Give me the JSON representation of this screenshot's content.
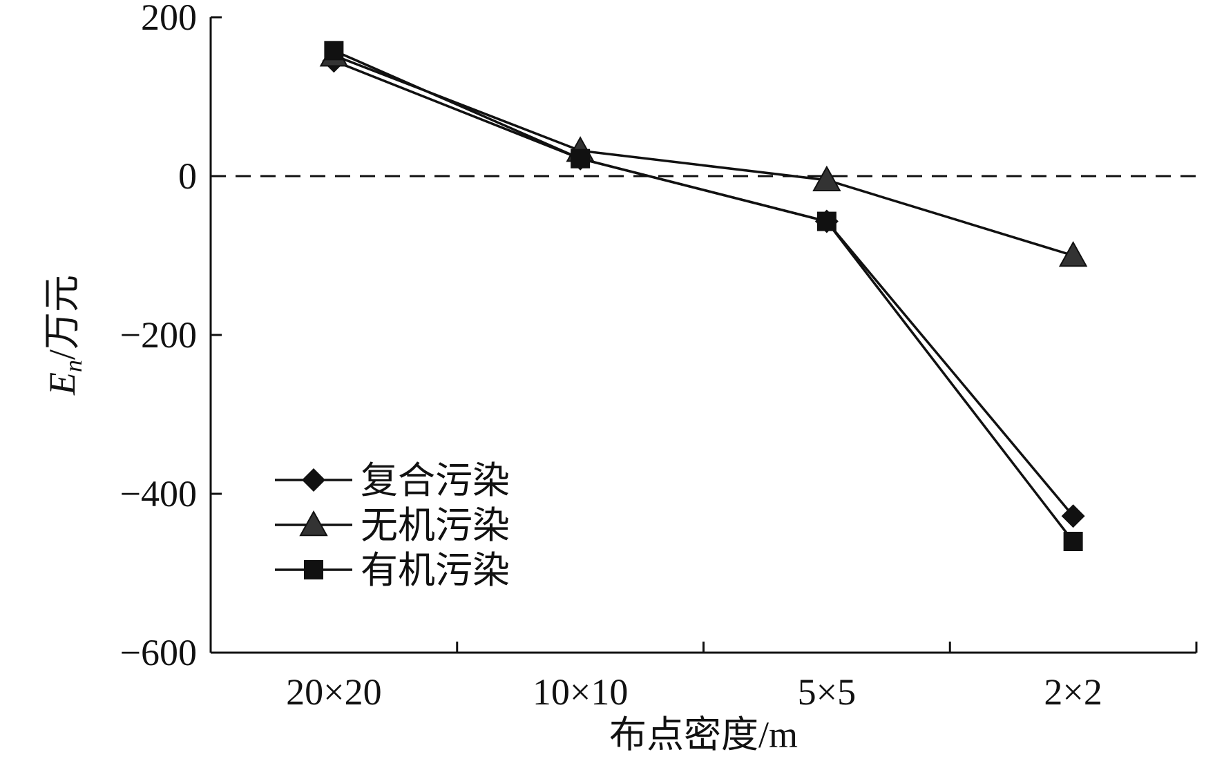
{
  "chart_data": {
    "type": "line",
    "title": "",
    "xlabel": "布点密度/m",
    "ylabel": "En/万元",
    "ylabel_parts": {
      "main": "E",
      "sub": "n",
      "unit": "/万元"
    },
    "categories": [
      "20×20",
      "10×10",
      "5×5",
      "2×2"
    ],
    "ylim": [
      -600,
      200
    ],
    "yticks": [
      200,
      0,
      -200,
      -400,
      -600
    ],
    "grid": false,
    "reference_line": {
      "y": 0,
      "style": "dashed"
    },
    "legend_position": "lower-left",
    "series": [
      {
        "name": "复合污染",
        "marker": "diamond",
        "values": [
          145,
          22,
          -57,
          -428
        ]
      },
      {
        "name": "无机污染",
        "marker": "triangle",
        "values": [
          152,
          32,
          -5,
          -100
        ]
      },
      {
        "name": "有机污染",
        "marker": "square",
        "values": [
          158,
          22,
          -57,
          -460
        ]
      }
    ]
  },
  "colors": {
    "line": "#111111",
    "triangle_fill": "#333333",
    "marker_fill": "#111111"
  }
}
